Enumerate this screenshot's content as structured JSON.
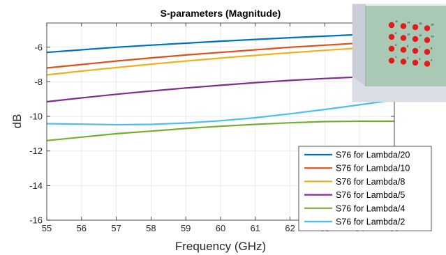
{
  "chart_data": {
    "type": "line",
    "title": "S-parameters (Magnitude)",
    "xlabel": "Frequency (GHz)",
    "ylabel": "dB",
    "xlim": [
      55,
      65
    ],
    "ylim": [
      -16,
      -4.6
    ],
    "x_ticks": [
      55,
      56,
      57,
      58,
      59,
      60,
      61,
      62,
      63,
      64,
      65
    ],
    "y_ticks": [
      -16,
      -14,
      -12,
      -10,
      -8,
      -6
    ],
    "grid": true,
    "legend_position": "bottom-right",
    "series": [
      {
        "name": "S76 for Lambda/20",
        "color": "#0072BD",
        "x": [
          55,
          56,
          57,
          58,
          59,
          60,
          61,
          62,
          63,
          64,
          65
        ],
        "y": [
          -6.3,
          -6.15,
          -6.0,
          -5.88,
          -5.77,
          -5.65,
          -5.55,
          -5.45,
          -5.36,
          -5.27,
          -5.18
        ]
      },
      {
        "name": "S76 for Lambda/10",
        "color": "#D95319",
        "x": [
          55,
          56,
          57,
          58,
          59,
          60,
          61,
          62,
          63,
          64,
          65
        ],
        "y": [
          -7.2,
          -7.0,
          -6.8,
          -6.62,
          -6.45,
          -6.3,
          -6.15,
          -6.0,
          -5.88,
          -5.76,
          -5.65
        ]
      },
      {
        "name": "S76 for Lambda/8",
        "color": "#EDB120",
        "x": [
          55,
          56,
          57,
          58,
          59,
          60,
          61,
          62,
          63,
          64,
          65
        ],
        "y": [
          -7.6,
          -7.38,
          -7.18,
          -6.98,
          -6.8,
          -6.63,
          -6.47,
          -6.32,
          -6.18,
          -6.05,
          -5.93
        ]
      },
      {
        "name": "S76 for Lambda/5",
        "color": "#7E2F8E",
        "x": [
          55,
          56,
          57,
          58,
          59,
          60,
          61,
          62,
          63,
          64,
          65
        ],
        "y": [
          -9.15,
          -8.93,
          -8.72,
          -8.53,
          -8.36,
          -8.2,
          -8.05,
          -7.92,
          -7.81,
          -7.72,
          -7.63
        ]
      },
      {
        "name": "S76 for Lambda/4",
        "color": "#77AC30",
        "x": [
          55,
          56,
          57,
          58,
          59,
          60,
          61,
          62,
          63,
          64,
          65
        ],
        "y": [
          -11.4,
          -11.2,
          -11.0,
          -10.85,
          -10.7,
          -10.57,
          -10.46,
          -10.37,
          -10.3,
          -10.28,
          -10.28
        ]
      },
      {
        "name": "S76 for Lambda/2",
        "color": "#4DBEEE",
        "x": [
          55,
          56,
          57,
          58,
          59,
          60,
          61,
          62,
          63,
          64,
          65
        ],
        "y": [
          -10.42,
          -10.45,
          -10.48,
          -10.46,
          -10.38,
          -10.25,
          -10.08,
          -9.85,
          -9.6,
          -9.33,
          -9.05
        ]
      }
    ],
    "inset_labels": [
      "11",
      "14",
      "15",
      "16",
      "9",
      "10",
      "12",
      "13",
      "5",
      "6",
      "7",
      "8",
      "1",
      "2",
      "3",
      "4"
    ]
  }
}
